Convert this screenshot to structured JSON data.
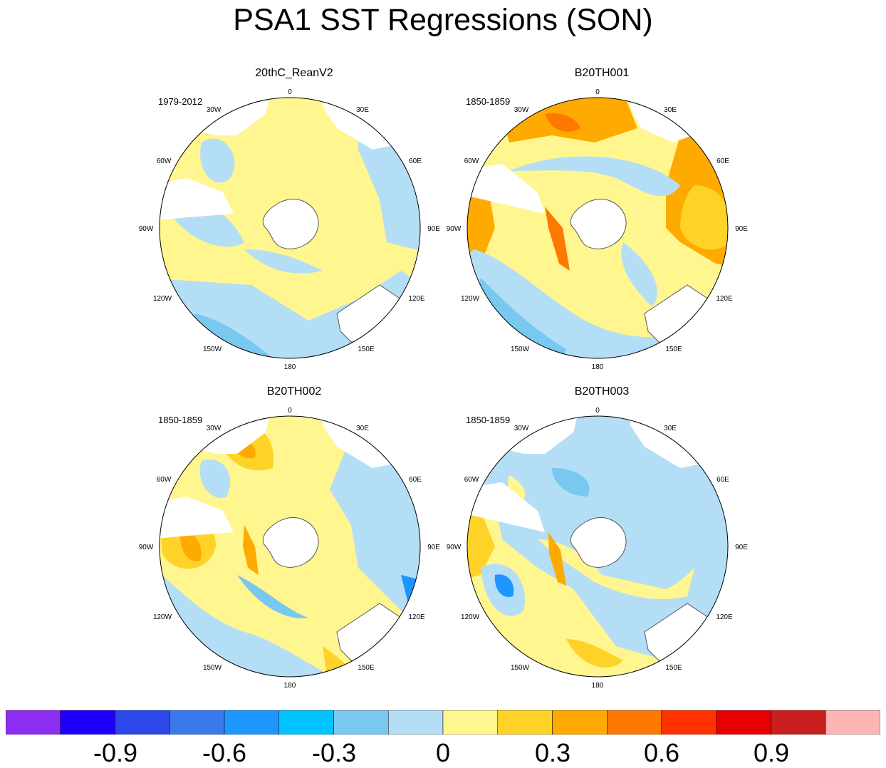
{
  "title": "PSA1 SST Regressions (SON)",
  "panels": [
    {
      "title": "20thC_ReanV2",
      "period": "1979-2012"
    },
    {
      "title": "B20TH001",
      "period": "1850-1859"
    },
    {
      "title": "B20TH002",
      "period": "1850-1859"
    },
    {
      "title": "B20TH003",
      "period": "1850-1859"
    }
  ],
  "longitude_labels": [
    "0",
    "30E",
    "60E",
    "90E",
    "120E",
    "150E",
    "180",
    "150W",
    "120W",
    "90W",
    "60W",
    "30W"
  ],
  "colorbar": {
    "colors": [
      "#8d2df0",
      "#1e00fa",
      "#2c48e8",
      "#3a78ec",
      "#1e96ff",
      "#00c3ff",
      "#78c8f0",
      "#b4def5",
      "#fff68f",
      "#ffd228",
      "#ffaa00",
      "#ff7800",
      "#ff3200",
      "#e60000",
      "#c81e1e",
      "#ffb4b4"
    ],
    "tick_labels": [
      "-0.9",
      "-0.6",
      "-0.3",
      "0",
      "0.3",
      "0.6",
      "0.9"
    ]
  },
  "colors": {
    "ocean_default": "#fff68f",
    "land": "#ffffff",
    "coast": "#555555"
  }
}
